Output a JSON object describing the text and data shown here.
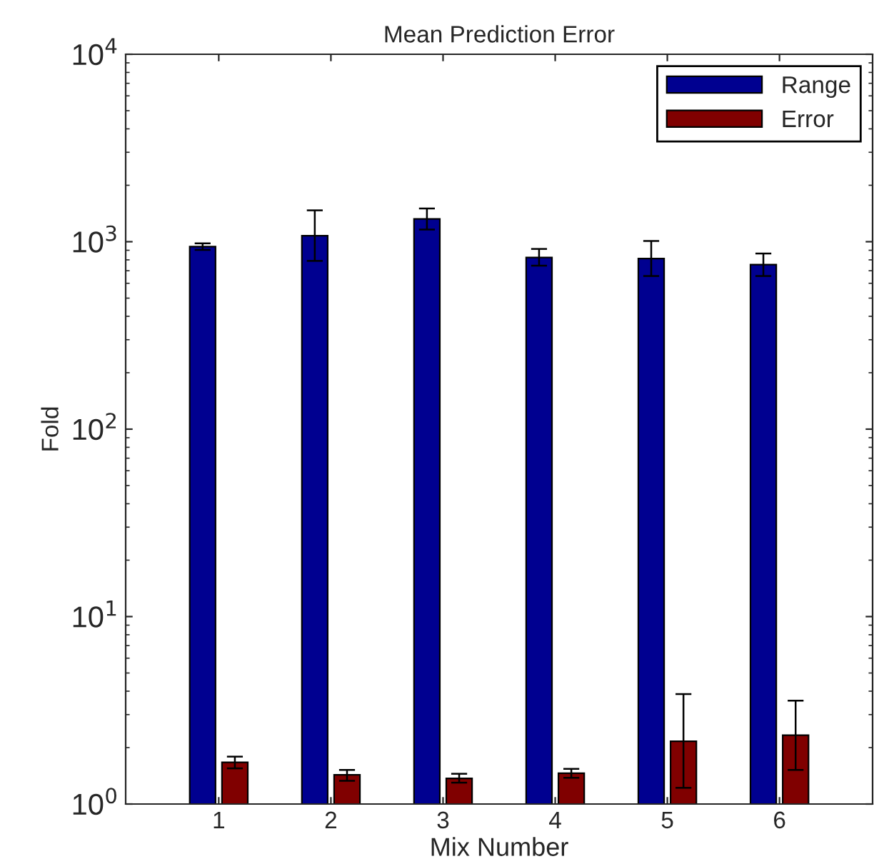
{
  "chart_data": {
    "type": "bar",
    "title": "Mean Prediction Error",
    "xlabel": "Mix Number",
    "ylabel": "Fold",
    "categories": [
      "1",
      "2",
      "3",
      "4",
      "5",
      "6"
    ],
    "series": [
      {
        "name": "Range",
        "color": "#000090",
        "values": [
          942,
          1077,
          1322,
          824,
          813,
          755
        ],
        "errors": [
          [
            904,
            980
          ],
          [
            790,
            1470
          ],
          [
            1161,
            1504
          ],
          [
            745,
            915
          ],
          [
            656,
            1009
          ],
          [
            656,
            865
          ]
        ]
      },
      {
        "name": "Error",
        "color": "#800000",
        "values": [
          1.67,
          1.43,
          1.37,
          1.46,
          2.16,
          2.33
        ],
        "errors": [
          [
            1.55,
            1.79
          ],
          [
            1.33,
            1.52
          ],
          [
            1.3,
            1.45
          ],
          [
            1.38,
            1.54
          ],
          [
            1.22,
            3.86
          ],
          [
            1.52,
            3.56
          ]
        ]
      }
    ],
    "log": "y",
    "ylim": [
      1,
      10000
    ],
    "yticks": [
      {
        "value": 1,
        "label": "10$^{0}$"
      },
      {
        "value": 10,
        "label": "10$^{1}$"
      },
      {
        "value": 100,
        "label": "10$^{2}$"
      },
      {
        "value": 1000,
        "label": "10$^{3}$"
      },
      {
        "value": 10000,
        "label": "10$^{4}$"
      }
    ],
    "legend": "top right",
    "grid": false
  }
}
